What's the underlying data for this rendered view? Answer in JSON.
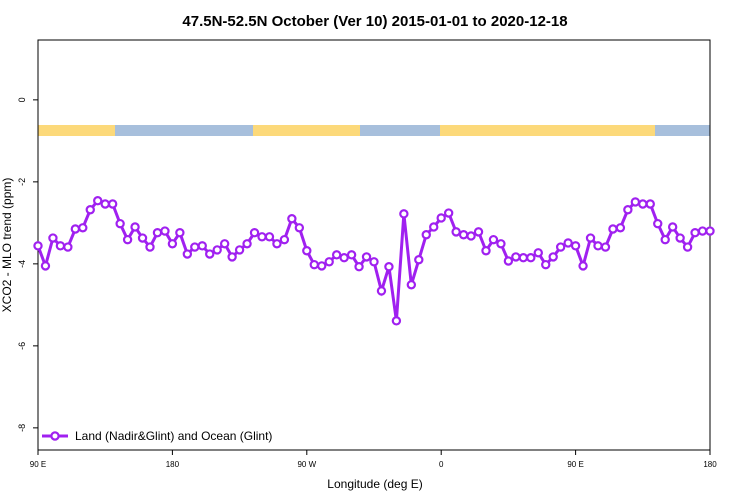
{
  "chart_data": {
    "type": "line",
    "title": "47.5N-52.5N October (Ver 10)   2015-01-01 to 2020-12-18",
    "x_label": "Longitude (deg E)",
    "y_label": "XCO2 - MLO trend (ppm)",
    "x": [
      90,
      95,
      100,
      105,
      110,
      115,
      120,
      125,
      130,
      135,
      140,
      145,
      150,
      155,
      160,
      165,
      170,
      175,
      180,
      185,
      190,
      195,
      200,
      205,
      210,
      215,
      220,
      225,
      230,
      235,
      240,
      245,
      250,
      255,
      260,
      265,
      270,
      275,
      280,
      285,
      290,
      295,
      300,
      305,
      310,
      315,
      320,
      325,
      330,
      335,
      340,
      345,
      350,
      355,
      360,
      365,
      370,
      375,
      380,
      385,
      390,
      395,
      400,
      405,
      410,
      415,
      420,
      425,
      430,
      435,
      440,
      445,
      450,
      455,
      460,
      465,
      470,
      475,
      480,
      485,
      490,
      495,
      500,
      505,
      510,
      515,
      520,
      525,
      530,
      535,
      540
    ],
    "series": [
      {
        "name": "Land (Nadir&Glint) and Ocean (Glint)",
        "color": "#a020f0",
        "values": [
          -3.56,
          -4.05,
          -3.37,
          -3.56,
          -3.59,
          -3.15,
          -3.12,
          -2.68,
          -2.46,
          -2.54,
          -2.54,
          -3.02,
          -3.41,
          -3.1,
          -3.37,
          -3.59,
          -3.24,
          -3.2,
          -3.51,
          -3.24,
          -3.76,
          -3.59,
          -3.56,
          -3.76,
          -3.66,
          -3.51,
          -3.83,
          -3.66,
          -3.51,
          -3.24,
          -3.34,
          -3.34,
          -3.51,
          -3.41,
          -2.9,
          -3.12,
          -3.68,
          -4.02,
          -4.05,
          -3.95,
          -3.78,
          -3.85,
          -3.78,
          -4.07,
          -3.83,
          -3.95,
          -4.66,
          -4.07,
          -5.39,
          -2.78,
          -4.51,
          -3.9,
          -3.29,
          -3.1,
          -2.88,
          -2.76,
          -3.22,
          -3.29,
          -3.32,
          -3.22,
          -3.68,
          -3.41,
          -3.51,
          -3.93,
          -3.83,
          -3.85,
          -3.85,
          -3.73,
          -4.02,
          -3.83,
          -3.59,
          -3.49,
          -3.56,
          -4.05,
          -3.37,
          -3.56,
          -3.59,
          -3.15,
          -3.12,
          -2.68,
          -2.49,
          -2.54,
          -2.54,
          -3.02,
          -3.41,
          -3.1,
          -3.37,
          -3.59,
          -3.24,
          -3.2,
          -3.2
        ]
      }
    ],
    "xlim": [
      90,
      540
    ],
    "xticks": [
      {
        "value": 90,
        "label": "90 E"
      },
      {
        "value": 180,
        "label": "180"
      },
      {
        "value": 270,
        "label": "90 W"
      },
      {
        "value": 360,
        "label": "0"
      },
      {
        "value": 450,
        "label": "90 E"
      },
      {
        "value": 540,
        "label": "180"
      }
    ],
    "ylim": [
      -8.54,
      1.46
    ],
    "yticks": [
      0,
      -2,
      -4,
      -6,
      -8
    ],
    "legend": "bottom-left"
  }
}
